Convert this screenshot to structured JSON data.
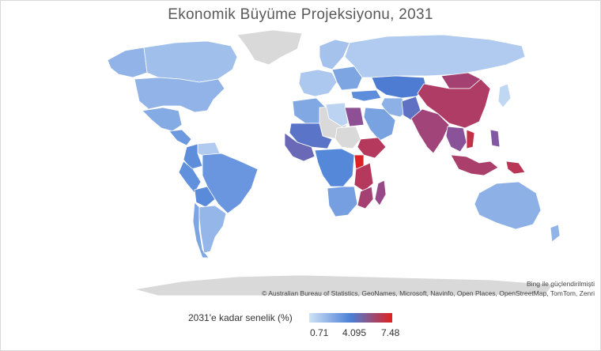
{
  "title": "Ekonomik Büyüme Projeksiyonu, 2031",
  "credits": {
    "powered_by": "Bing ile güçlendirilmişti",
    "copyright": "© Australian Bureau of Statistics, GeoNames, Microsoft, Navinfo, Open Places, OpenStreetMap, TomTom, Zenri"
  },
  "legend": {
    "title": "2031'e kadar senelik (%)",
    "min_label": "0.71",
    "mid_label": "4.095",
    "max_label": "7.48",
    "min": 0.71,
    "mid": 4.095,
    "max": 7.48,
    "colors": {
      "low": "#cfe2f6",
      "mid": "#4a7fd6",
      "high": "#e02020",
      "no_data": "#d9d9d9"
    }
  },
  "regions": [
    {
      "name": "Canada",
      "value": 1.9
    },
    {
      "name": "United States",
      "value": 2.3
    },
    {
      "name": "Alaska",
      "value": 2.3
    },
    {
      "name": "Greenland",
      "value": null
    },
    {
      "name": "Mexico",
      "value": 2.6
    },
    {
      "name": "Central America",
      "value": 3.2
    },
    {
      "name": "Venezuela",
      "value": 1.5
    },
    {
      "name": "Colombia",
      "value": 3.6
    },
    {
      "name": "Brazil",
      "value": 3.3
    },
    {
      "name": "Peru",
      "value": 3.5
    },
    {
      "name": "Bolivia",
      "value": 3.7
    },
    {
      "name": "Argentina",
      "value": 2.2
    },
    {
      "name": "Chile",
      "value": 2.8
    },
    {
      "name": "Western Europe",
      "value": 1.6
    },
    {
      "name": "Scandinavia",
      "value": 1.8
    },
    {
      "name": "Eastern Europe",
      "value": 2.8
    },
    {
      "name": "Russia",
      "value": 1.5
    },
    {
      "name": "Turkey",
      "value": 3.6
    },
    {
      "name": "Central Asia",
      "value": 4.2
    },
    {
      "name": "Iran",
      "value": 2.4
    },
    {
      "name": "Arabian Peninsula",
      "value": 2.9
    },
    {
      "name": "Egypt",
      "value": 5.8
    },
    {
      "name": "Libya",
      "value": 1.2
    },
    {
      "name": "Algeria",
      "value": 2.7
    },
    {
      "name": "Sahel",
      "value": 4.5
    },
    {
      "name": "West Africa",
      "value": 4.9
    },
    {
      "name": "Central Africa",
      "value": 3.8
    },
    {
      "name": "Ethiopia",
      "value": 6.6
    },
    {
      "name": "Uganda",
      "value": 7.4
    },
    {
      "name": "Tanzania",
      "value": 6.6
    },
    {
      "name": "Mozambique",
      "value": 6.3
    },
    {
      "name": "Southern Africa",
      "value": 3.0
    },
    {
      "name": "Madagascar",
      "value": 6.0
    },
    {
      "name": "Pakistan",
      "value": 4.6
    },
    {
      "name": "India",
      "value": 6.2
    },
    {
      "name": "China",
      "value": 6.5
    },
    {
      "name": "Mongolia",
      "value": 6.3
    },
    {
      "name": "Southeast Asia",
      "value": 5.7
    },
    {
      "name": "Vietnam",
      "value": 6.9
    },
    {
      "name": "Indonesia",
      "value": 6.4
    },
    {
      "name": "Papua New Guinea",
      "value": 6.7
    },
    {
      "name": "Philippines",
      "value": 5.5
    },
    {
      "name": "Japan",
      "value": 1.1
    },
    {
      "name": "Australia",
      "value": 2.4
    },
    {
      "name": "New Zealand",
      "value": 2.3
    },
    {
      "name": "Antarctica",
      "value": null
    },
    {
      "name": "Sahara",
      "value": null
    },
    {
      "name": "Horn of Africa",
      "value": null
    }
  ]
}
